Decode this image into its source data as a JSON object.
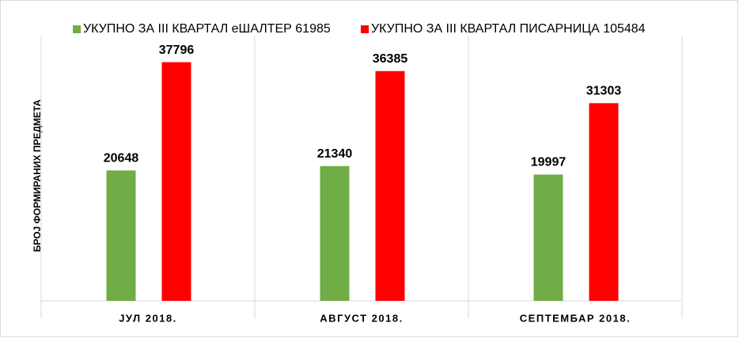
{
  "chart_data": {
    "type": "bar",
    "y_label": "БРОЈ ФОРМИРАНИХ ПРЕДМЕТА",
    "categories": [
      "ЈУЛ 2018.",
      "АВГУСТ 2018.",
      "СЕПТЕМБАР 2018."
    ],
    "series": [
      {
        "name": "УКУПНО ЗА III КВАРТАЛ еШАЛТЕР 61985",
        "color": "#70ad47",
        "values": [
          20648,
          21340,
          19997
        ]
      },
      {
        "name": "УКУПНО ЗА III КВАРТАЛ ПИСАРНИЦА 105484",
        "color": "#ff0000",
        "values": [
          37796,
          36385,
          31303
        ]
      }
    ],
    "ylim": [
      0,
      42000
    ],
    "legend": "top"
  }
}
